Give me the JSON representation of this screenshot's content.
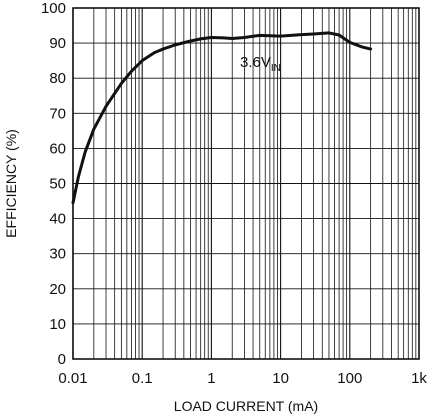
{
  "chart_data": {
    "type": "line",
    "xlabel": "LOAD CURRENT (mA)",
    "ylabel": "EFFICIENCY (%)",
    "xscale": "log",
    "xlim": [
      0.01,
      1000
    ],
    "ylim": [
      0,
      100
    ],
    "x_ticks": [
      {
        "value": 0.01,
        "label": "0.01"
      },
      {
        "value": 0.1,
        "label": "0.1"
      },
      {
        "value": 1,
        "label": "1"
      },
      {
        "value": 10,
        "label": "10"
      },
      {
        "value": 100,
        "label": "100"
      },
      {
        "value": 1000,
        "label": "1k"
      }
    ],
    "y_ticks": [
      0,
      10,
      20,
      30,
      40,
      50,
      60,
      70,
      80,
      90,
      100
    ],
    "grid": true,
    "series": [
      {
        "annotation": {
          "main": "3.6V",
          "sub": "IN"
        },
        "x": [
          0.01,
          0.012,
          0.015,
          0.02,
          0.03,
          0.05,
          0.07,
          0.1,
          0.15,
          0.2,
          0.3,
          0.5,
          0.7,
          1,
          1.5,
          2,
          3,
          5,
          7,
          10,
          20,
          30,
          50,
          70,
          100,
          150,
          200
        ],
        "y": [
          44.5,
          52,
          59,
          65.5,
          72,
          78.5,
          82,
          85,
          87.3,
          88.3,
          89.5,
          90.6,
          91.2,
          91.6,
          91.5,
          91.3,
          91.6,
          92.2,
          92.1,
          92.0,
          92.4,
          92.6,
          92.9,
          92.3,
          90.2,
          88.9,
          88.3
        ]
      }
    ]
  }
}
